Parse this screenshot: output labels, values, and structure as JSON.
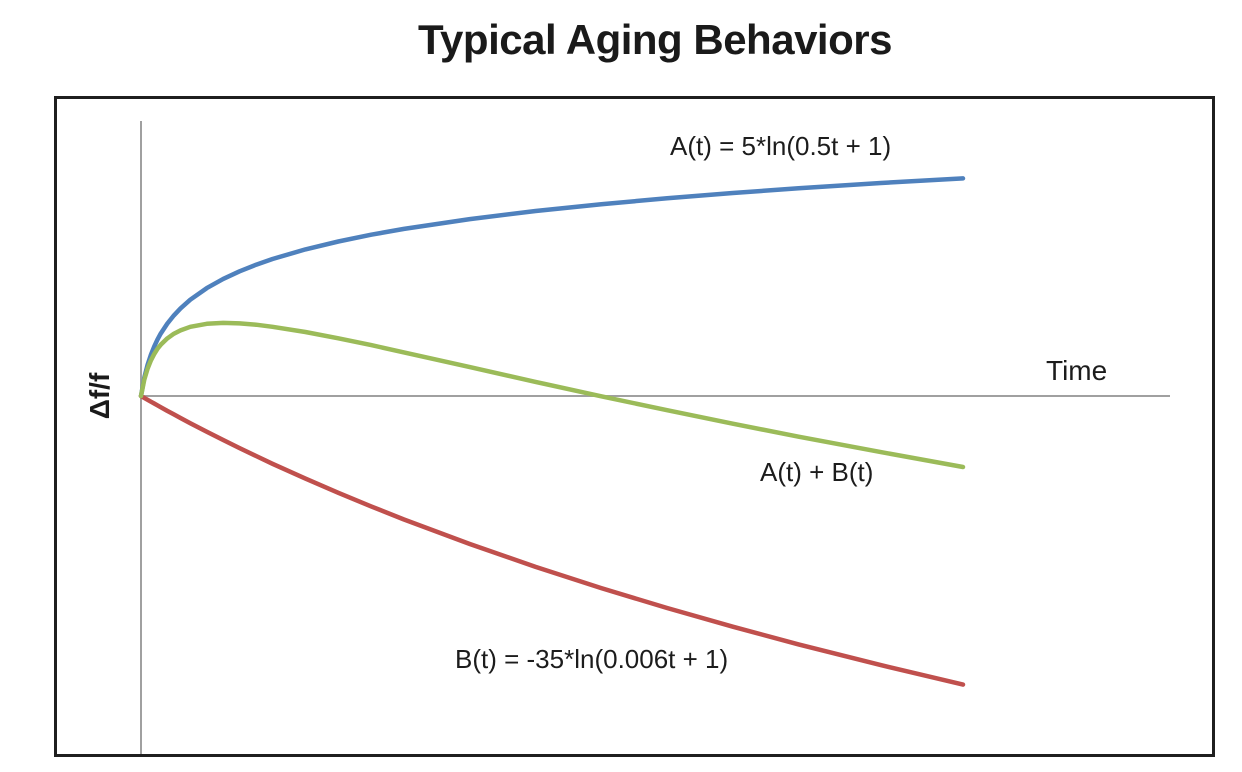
{
  "page": {
    "background": "#ffffff"
  },
  "chart_data": {
    "type": "line",
    "title": "Typical Aging Behaviors",
    "xlabel": "Time",
    "ylabel": "Δf/f",
    "grid": false,
    "legend_position": "inline-annotations",
    "axis_color": "#a0a0a0",
    "border_color": "#1f1f1f",
    "t_range": [
      0,
      250
    ],
    "y_range": [
      -40,
      30
    ],
    "x": [
      0,
      1,
      2,
      3,
      4,
      5,
      6,
      8,
      10,
      12,
      15,
      20,
      25,
      30,
      35,
      40,
      50,
      60,
      70,
      80,
      100,
      120,
      140,
      160,
      180,
      200,
      225,
      250
    ],
    "series": [
      {
        "name": "A",
        "label": "A(t) = 5*ln(0.5t + 1)",
        "color": "#4F81BD",
        "values": [
          0,
          2.03,
          3.47,
          4.58,
          5.49,
          6.26,
          6.93,
          8.05,
          8.96,
          9.73,
          10.7,
          11.99,
          13.01,
          13.86,
          14.59,
          15.22,
          16.29,
          17.17,
          17.92,
          18.57,
          19.66,
          20.56,
          21.31,
          21.97,
          22.55,
          23.08,
          23.67,
          24.18
        ]
      },
      {
        "name": "B",
        "label": "B(t) = -35*ln(0.006t + 1)",
        "color": "#C0504D",
        "values": [
          0,
          -0.21,
          -0.42,
          -0.63,
          -0.83,
          -1.03,
          -1.24,
          -1.65,
          -2.04,
          -2.44,
          -3.02,
          -3.97,
          -4.89,
          -5.79,
          -6.67,
          -7.53,
          -9.18,
          -10.76,
          -12.27,
          -13.72,
          -16.45,
          -18.99,
          -21.34,
          -23.55,
          -25.63,
          -27.6,
          -29.9,
          -32.07
        ]
      },
      {
        "name": "A+B",
        "label": "A(t) + B(t)",
        "color": "#9BBB59",
        "values": [
          0,
          1.82,
          3.05,
          3.96,
          4.66,
          5.23,
          5.69,
          6.4,
          6.92,
          7.29,
          7.69,
          8.02,
          8.12,
          8.07,
          7.92,
          7.69,
          7.11,
          6.41,
          5.65,
          4.85,
          3.21,
          1.57,
          -0.03,
          -1.58,
          -3.08,
          -4.52,
          -6.23,
          -7.89
        ]
      }
    ]
  }
}
